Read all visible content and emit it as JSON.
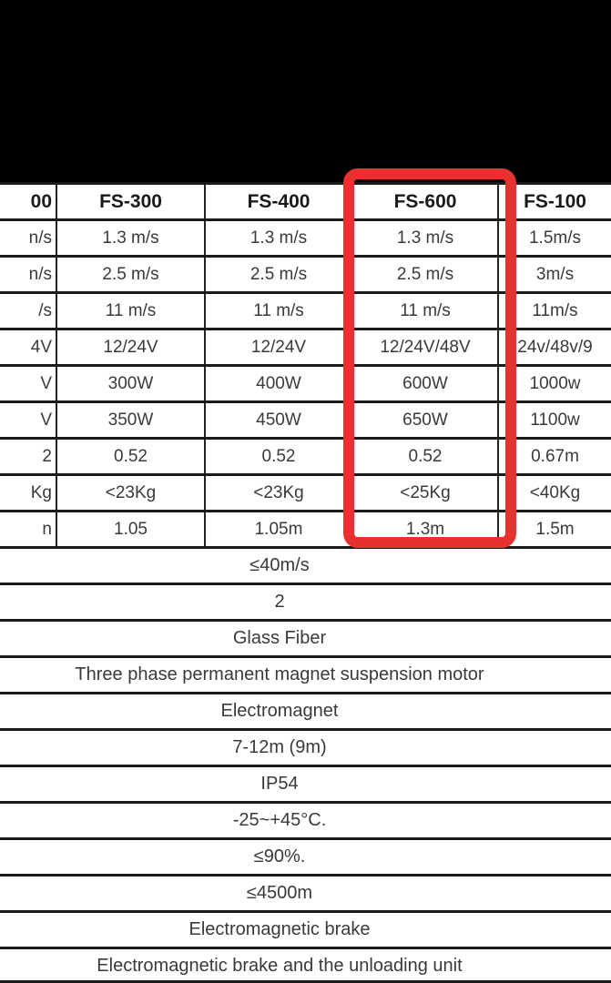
{
  "highlight_color": "#e8302e",
  "header": [
    "00",
    "FS-300",
    "FS-400",
    "FS-600",
    "FS-100"
  ],
  "rows": [
    [
      "n/s",
      "1.3 m/s",
      "1.3 m/s",
      "1.3 m/s",
      "1.5m/s"
    ],
    [
      "n/s",
      "2.5 m/s",
      "2.5 m/s",
      "2.5 m/s",
      "3m/s"
    ],
    [
      "/s",
      "11 m/s",
      "11 m/s",
      "11 m/s",
      "11m/s"
    ],
    [
      "4V",
      "12/24V",
      "12/24V",
      "12/24V/48V",
      "24v/48v/9"
    ],
    [
      "V",
      "300W",
      "400W",
      "600W",
      "1000w"
    ],
    [
      "V",
      "350W",
      "450W",
      "650W",
      "1100w"
    ],
    [
      "2",
      "0.52",
      "0.52",
      "0.52",
      "0.67m"
    ],
    [
      "Kg",
      "<23Kg",
      "<23Kg",
      "<25Kg",
      "<40Kg"
    ],
    [
      "n",
      "1.05",
      "1.05m",
      "1.3m",
      "1.5m"
    ]
  ],
  "shared_rows": [
    "≤40m/s",
    "2",
    "Glass Fiber",
    "Three phase permanent magnet suspension motor",
    "Electromagnet",
    "7-12m (9m)",
    "IP54",
    "-25~+45°C.",
    "≤90%.",
    "≤4500m",
    "Electromagnetic brake",
    "Electromagnetic brake and the unloading unit"
  ]
}
